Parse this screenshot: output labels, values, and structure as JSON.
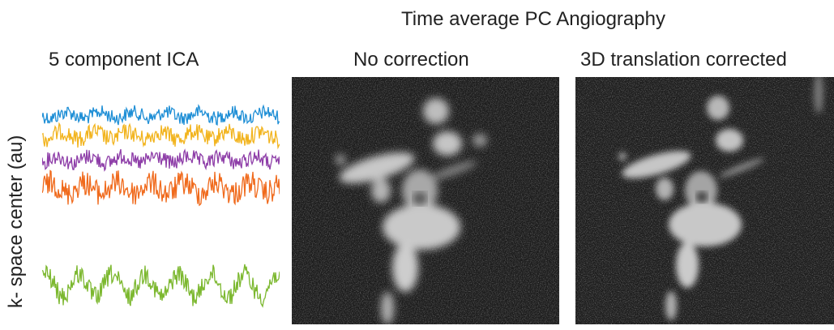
{
  "figure": {
    "title": "Time average PC Angiography",
    "left_panel_label": "5 component  ICA",
    "ylabel": "k- space center (au)",
    "mid_panel_label": "No correction",
    "right_panel_label": "3D translation corrected"
  },
  "signals": {
    "colors": [
      "#1f8fd6",
      "#f2b41e",
      "#8e3ea8",
      "#f06a1c",
      "#7cb82f"
    ]
  }
}
